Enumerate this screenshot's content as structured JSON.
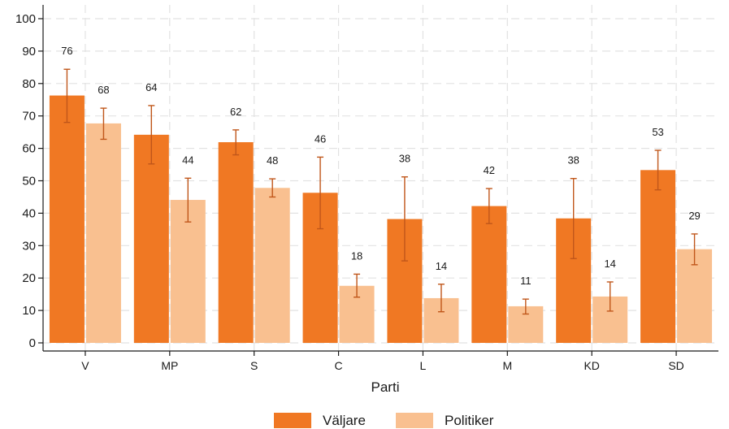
{
  "chart_data": {
    "type": "bar",
    "xlabel": "Parti",
    "ylabel": "",
    "ylim": [
      0,
      100
    ],
    "yticks": [
      "0",
      "10",
      "20",
      "30",
      "40",
      "50",
      "60",
      "70",
      "80",
      "90",
      "100"
    ],
    "categories": [
      "V",
      "MP",
      "S",
      "C",
      "L",
      "M",
      "KD",
      "SD"
    ],
    "grid": true,
    "legend_position": "bottom",
    "series": [
      {
        "name": "Väljare",
        "color": "#f07823",
        "values": [
          76.3,
          64.2,
          61.9,
          46.3,
          38.2,
          42.2,
          38.4,
          53.3
        ],
        "labels": [
          "76",
          "64",
          "62",
          "46",
          "38",
          "42",
          "38",
          "53"
        ],
        "ci_low": [
          68,
          55.2,
          58,
          35.2,
          25.3,
          36.8,
          26,
          47.2
        ],
        "ci_high": [
          84.4,
          73.2,
          65.7,
          57.3,
          51.2,
          47.6,
          50.7,
          59.4
        ]
      },
      {
        "name": "Politiker",
        "color": "#f9c090",
        "values": [
          67.7,
          44.1,
          47.8,
          17.6,
          13.8,
          11.3,
          14.3,
          28.9
        ],
        "labels": [
          "68",
          "44",
          "48",
          "18",
          "14",
          "11",
          "14",
          "29"
        ],
        "ci_low": [
          62.8,
          37.3,
          45,
          14.1,
          9.6,
          8.9,
          9.8,
          24.1
        ],
        "ci_high": [
          72.4,
          50.8,
          50.6,
          21.2,
          18.1,
          13.5,
          18.8,
          33.6
        ]
      }
    ],
    "errorbar_color": "#c0561a"
  }
}
